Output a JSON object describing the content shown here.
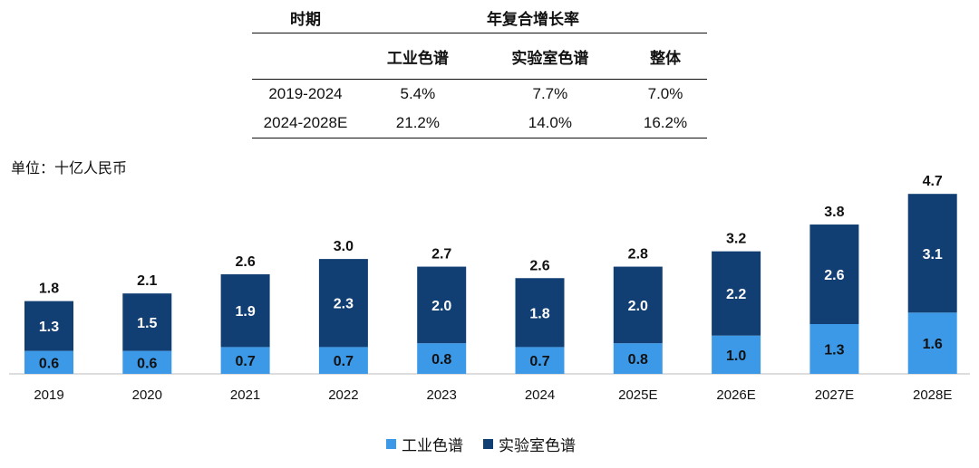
{
  "cagr_table": {
    "header_period": "时期",
    "header_cagr": "年复合增长率",
    "sub_headers": [
      "工业色谱",
      "实验室色谱",
      "整体"
    ],
    "rows": [
      {
        "period": "2019-2024",
        "values": [
          "5.4%",
          "7.7%",
          "7.0%"
        ]
      },
      {
        "period": "2024-2028E",
        "values": [
          "21.2%",
          "14.0%",
          "16.2%"
        ]
      }
    ]
  },
  "unit_label": "单位：十亿人民币",
  "colors": {
    "industrial": "#3B99E8",
    "laboratory": "#123F73",
    "total_label": "#111111"
  },
  "chart_data": {
    "type": "bar",
    "stacked": true,
    "categories": [
      "2019",
      "2020",
      "2021",
      "2022",
      "2023",
      "2024",
      "2025E",
      "2026E",
      "2027E",
      "2028E"
    ],
    "series": [
      {
        "name": "工业色谱",
        "values": [
          0.6,
          0.6,
          0.7,
          0.7,
          0.8,
          0.7,
          0.8,
          1.0,
          1.3,
          1.6
        ]
      },
      {
        "name": "实验室色谱",
        "values": [
          1.3,
          1.5,
          1.9,
          2.3,
          2.0,
          1.8,
          2.0,
          2.2,
          2.6,
          3.1
        ]
      }
    ],
    "totals": [
      1.8,
      2.1,
      2.6,
      3.0,
      2.7,
      2.6,
      2.8,
      3.2,
      3.8,
      4.7
    ],
    "legend": "bottom",
    "grid": false
  }
}
